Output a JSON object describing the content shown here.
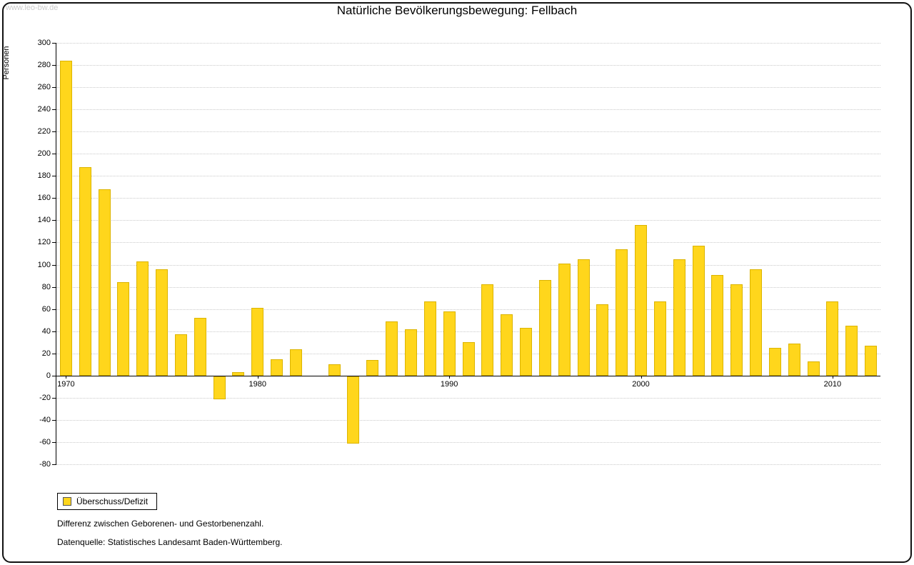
{
  "watermark": "www.leo-bw.de",
  "title": "Natürliche Bevölkerungsbewegung: Fellbach",
  "chart_data": {
    "type": "bar",
    "title": "Natürliche Bevölkerungsbewegung: Fellbach",
    "xlabel": "",
    "ylabel": "Personen",
    "ylim": [
      -80,
      300
    ],
    "ytick_step": 20,
    "grid": true,
    "legend_position": "bottom-left",
    "legend_label": "Überschuss/Defizit",
    "bar_color": "#FFD61C",
    "x_tick_years": [
      1970,
      1980,
      1990,
      2000,
      2010
    ],
    "years": [
      1970,
      1971,
      1972,
      1973,
      1974,
      1975,
      1976,
      1977,
      1978,
      1979,
      1980,
      1981,
      1982,
      1983,
      1984,
      1985,
      1986,
      1987,
      1988,
      1989,
      1990,
      1991,
      1992,
      1993,
      1994,
      1995,
      1996,
      1997,
      1998,
      1999,
      2000,
      2001,
      2002,
      2003,
      2004,
      2005,
      2006,
      2007,
      2008,
      2009,
      2010,
      2011,
      2012
    ],
    "values": [
      284,
      188,
      168,
      84,
      103,
      96,
      37,
      52,
      -21,
      3,
      61,
      15,
      24,
      0,
      10,
      -61,
      14,
      49,
      42,
      67,
      58,
      30,
      82,
      55,
      43,
      86,
      101,
      105,
      64,
      114,
      136,
      67,
      105,
      117,
      91,
      82,
      96,
      25,
      29,
      13,
      67,
      45,
      27
    ]
  },
  "notes": [
    "Differenz zwischen Geborenen- und Gestorbenenzahl.",
    "Datenquelle: Statistisches Landesamt Baden-Württemberg."
  ]
}
